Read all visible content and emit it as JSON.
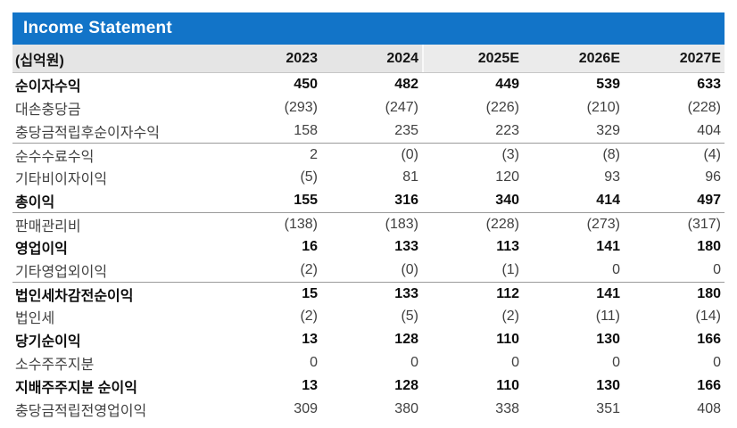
{
  "title": "Income Statement",
  "unit_label": "(십억원)",
  "columns": [
    "2023",
    "2024",
    "2025E",
    "2026E",
    "2027E"
  ],
  "colors": {
    "title_bar": "#1274C8",
    "title_text": "#FFFFFF",
    "header_bg": "#E5E5E5",
    "header_estimate_bg": "#EBEBEB",
    "section_divider": "#9B9B9B",
    "header_underline": "#C6C6C6",
    "body_text": "#404040",
    "bold_text": "#0D0D0D"
  },
  "table": {
    "rows": [
      {
        "label": "순이자수익",
        "bold": true,
        "divider_above": false,
        "values": [
          "450",
          "482",
          "449",
          "539",
          "633"
        ]
      },
      {
        "label": "대손충당금",
        "bold": false,
        "divider_above": false,
        "values": [
          "(293)",
          "(247)",
          "(226)",
          "(210)",
          "(228)"
        ]
      },
      {
        "label": "충당금적립후순이자수익",
        "bold": false,
        "divider_above": false,
        "values": [
          "158",
          "235",
          "223",
          "329",
          "404"
        ]
      },
      {
        "label": "순수수료수익",
        "bold": false,
        "divider_above": true,
        "values": [
          "2",
          "(0)",
          "(3)",
          "(8)",
          "(4)"
        ]
      },
      {
        "label": "기타비이자이익",
        "bold": false,
        "divider_above": false,
        "values": [
          "(5)",
          "81",
          "120",
          "93",
          "96"
        ]
      },
      {
        "label": "총이익",
        "bold": true,
        "divider_above": false,
        "values": [
          "155",
          "316",
          "340",
          "414",
          "497"
        ]
      },
      {
        "label": "판매관리비",
        "bold": false,
        "divider_above": true,
        "values": [
          "(138)",
          "(183)",
          "(228)",
          "(273)",
          "(317)"
        ]
      },
      {
        "label": "영업이익",
        "bold": true,
        "divider_above": false,
        "values": [
          "16",
          "133",
          "113",
          "141",
          "180"
        ]
      },
      {
        "label": "기타영업외이익",
        "bold": false,
        "divider_above": false,
        "values": [
          "(2)",
          "(0)",
          "(1)",
          "0",
          "0"
        ]
      },
      {
        "label": "법인세차감전순이익",
        "bold": true,
        "divider_above": true,
        "values": [
          "15",
          "133",
          "112",
          "141",
          "180"
        ]
      },
      {
        "label": "법인세",
        "bold": false,
        "divider_above": false,
        "values": [
          "(2)",
          "(5)",
          "(2)",
          "(11)",
          "(14)"
        ]
      },
      {
        "label": "당기순이익",
        "bold": true,
        "divider_above": false,
        "values": [
          "13",
          "128",
          "110",
          "130",
          "166"
        ]
      },
      {
        "label": "소수주주지분",
        "bold": false,
        "divider_above": false,
        "values": [
          "0",
          "0",
          "0",
          "0",
          "0"
        ]
      },
      {
        "label": "지배주주지분 순이익",
        "bold": true,
        "divider_above": false,
        "values": [
          "13",
          "128",
          "110",
          "130",
          "166"
        ]
      },
      {
        "label": "충당금적립전영업이익",
        "bold": false,
        "divider_above": false,
        "values": [
          "309",
          "380",
          "338",
          "351",
          "408"
        ]
      }
    ]
  }
}
